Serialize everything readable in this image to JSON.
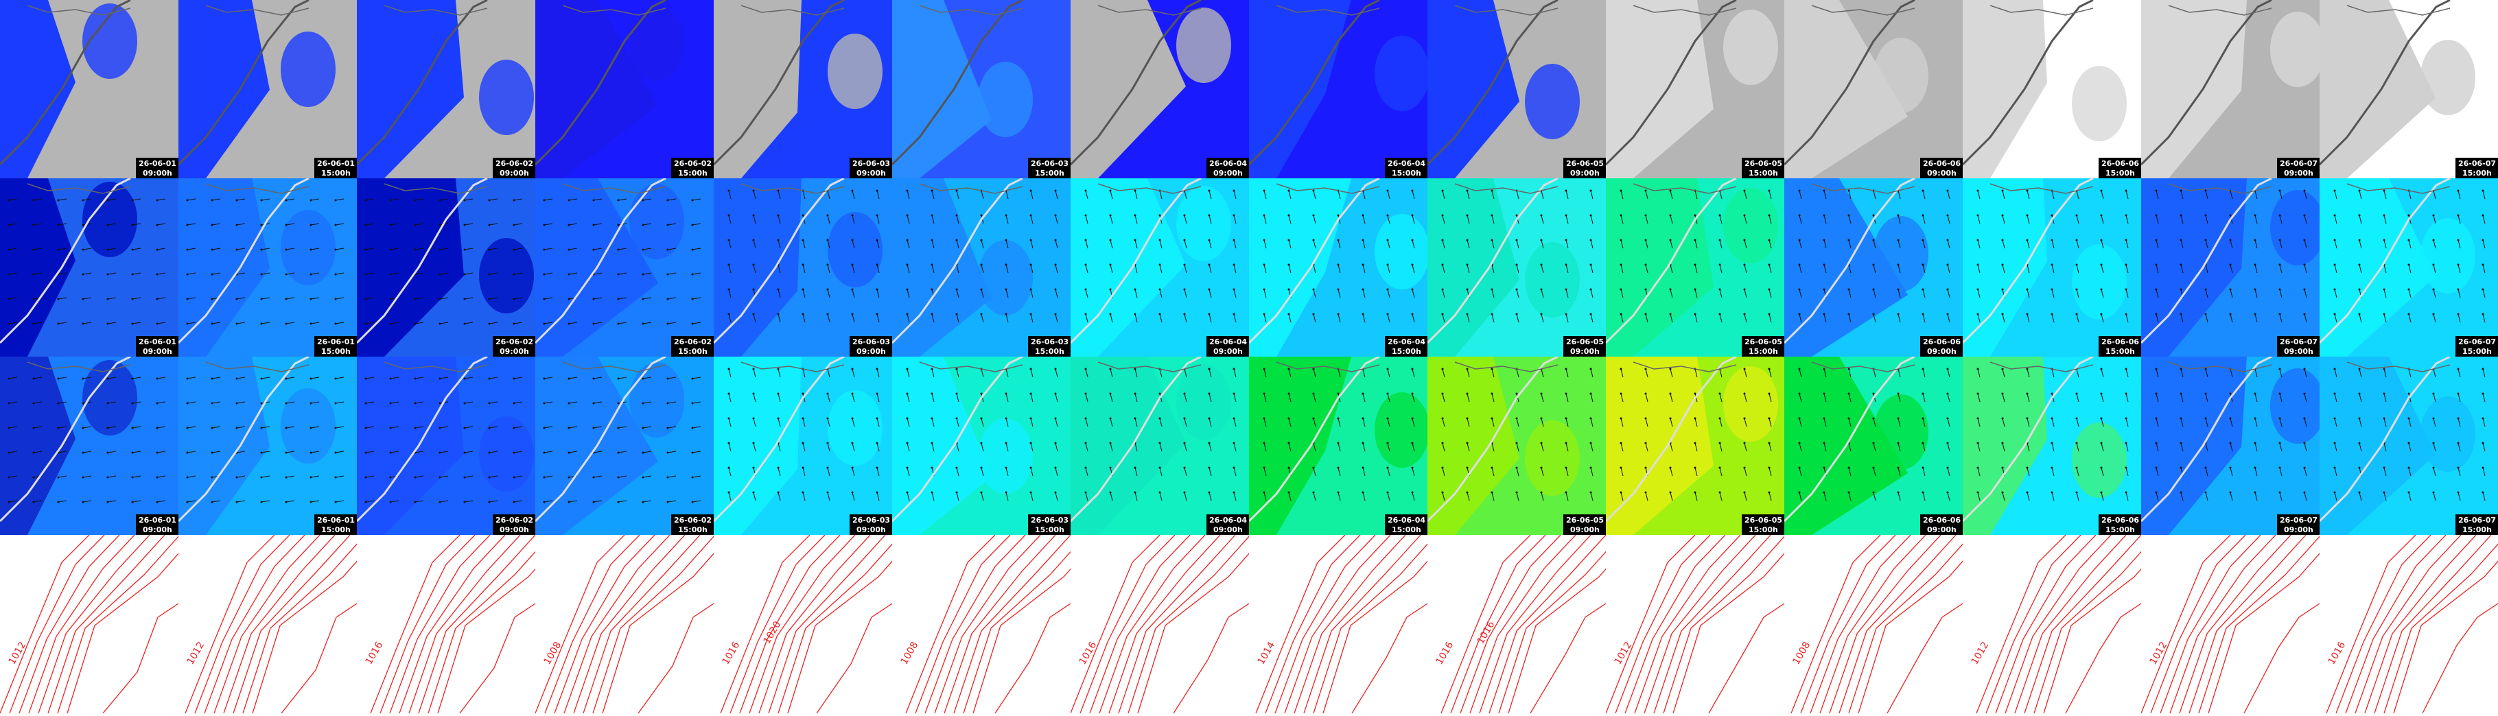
{
  "timestamps": [
    {
      "date": "26-06-01",
      "time": "09:00h"
    },
    {
      "date": "26-06-01",
      "time": "15:00h"
    },
    {
      "date": "26-06-02",
      "time": "09:00h"
    },
    {
      "date": "26-06-02",
      "time": "15:00h"
    },
    {
      "date": "26-06-03",
      "time": "09:00h"
    },
    {
      "date": "26-06-03",
      "time": "15:00h"
    },
    {
      "date": "26-06-04",
      "time": "09:00h"
    },
    {
      "date": "26-06-04",
      "time": "15:00h"
    },
    {
      "date": "26-06-05",
      "time": "09:00h"
    },
    {
      "date": "26-06-05",
      "time": "15:00h"
    },
    {
      "date": "26-06-06",
      "time": "09:00h"
    },
    {
      "date": "26-06-06",
      "time": "15:00h"
    },
    {
      "date": "26-06-07",
      "time": "09:00h"
    },
    {
      "date": "26-06-07",
      "time": "15:00h"
    }
  ],
  "contour_labels": [
    [
      "1012"
    ],
    [
      "1012"
    ],
    [
      "1016"
    ],
    [
      "1008"
    ],
    [
      "1016",
      "1020"
    ],
    [
      "1008"
    ],
    [
      "1016"
    ],
    [
      "1014"
    ],
    [
      "1016",
      "1016"
    ],
    [
      "1012"
    ],
    [
      "1008"
    ],
    [
      "1012"
    ],
    [
      "1012"
    ],
    [
      "1016"
    ]
  ]
}
